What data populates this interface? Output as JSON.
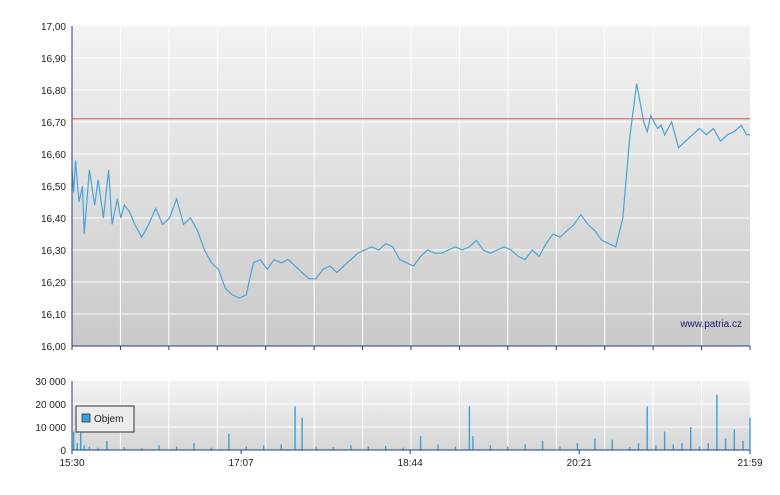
{
  "watermark": "www.patria.cz",
  "colors": {
    "price_line": "#4aa3d8",
    "reference_line": "#d9534f",
    "volume_bar": "#3a9fd6",
    "axis": "#1f3f7a",
    "grid": "#ffffff",
    "bg_top": "#f3f3f3",
    "bg_bottom": "#c9c9c9"
  },
  "chart_data": [
    {
      "type": "line",
      "title": "",
      "xlabel": "",
      "ylabel": "",
      "x_ticks": [
        "15:30",
        "17:07",
        "18:44",
        "20:21",
        "21:59"
      ],
      "y_ticks": [
        "16,00",
        "16,10",
        "16,20",
        "16,30",
        "16,40",
        "16,50",
        "16,60",
        "16,70",
        "16,80",
        "16,90",
        "17,00"
      ],
      "ylim": [
        16.0,
        17.0
      ],
      "xlim": [
        "15:30",
        "21:59"
      ],
      "grid": true,
      "reference_line": 16.71,
      "series": [
        {
          "x": [
            "15:30",
            "15:31",
            "15:32",
            "15:34",
            "15:36",
            "15:37",
            "15:40",
            "15:43",
            "15:45",
            "15:48",
            "15:51",
            "15:53",
            "15:56",
            "15:58",
            "16:00",
            "16:03",
            "16:06",
            "16:10",
            "16:14",
            "16:18",
            "16:22",
            "16:26",
            "16:30",
            "16:34",
            "16:38",
            "16:42",
            "16:46",
            "16:50",
            "16:54",
            "16:58",
            "17:02",
            "17:06",
            "17:10",
            "17:14",
            "17:18",
            "17:22",
            "17:26",
            "17:30",
            "17:34",
            "17:38",
            "17:42",
            "17:46",
            "17:50",
            "17:54",
            "17:58",
            "18:02",
            "18:06",
            "18:10",
            "18:14",
            "18:18",
            "18:22",
            "18:26",
            "18:30",
            "18:34",
            "18:38",
            "18:42",
            "18:46",
            "18:50",
            "18:54",
            "18:58",
            "19:02",
            "19:06",
            "19:10",
            "19:14",
            "19:18",
            "19:22",
            "19:26",
            "19:30",
            "19:34",
            "19:38",
            "19:42",
            "19:46",
            "19:50",
            "19:54",
            "19:58",
            "20:02",
            "20:06",
            "20:10",
            "20:14",
            "20:18",
            "20:22",
            "20:26",
            "20:30",
            "20:34",
            "20:38",
            "20:42",
            "20:46",
            "20:50",
            "20:54",
            "20:58",
            "21:00",
            "21:02",
            "21:04",
            "21:06",
            "21:08",
            "21:10",
            "21:14",
            "21:18",
            "21:22",
            "21:26",
            "21:30",
            "21:34",
            "21:38",
            "21:42",
            "21:46",
            "21:50",
            "21:54",
            "21:57",
            "21:59"
          ],
          "values": [
            16.55,
            16.48,
            16.58,
            16.45,
            16.5,
            16.35,
            16.55,
            16.44,
            16.52,
            16.4,
            16.55,
            16.38,
            16.46,
            16.4,
            16.44,
            16.42,
            16.38,
            16.34,
            16.38,
            16.43,
            16.38,
            16.4,
            16.46,
            16.38,
            16.4,
            16.36,
            16.3,
            16.26,
            16.24,
            16.18,
            16.16,
            16.15,
            16.16,
            16.26,
            16.27,
            16.24,
            16.27,
            16.26,
            16.27,
            16.25,
            16.23,
            16.21,
            16.21,
            16.24,
            16.25,
            16.23,
            16.25,
            16.27,
            16.29,
            16.3,
            16.31,
            16.3,
            16.32,
            16.31,
            16.27,
            16.26,
            16.25,
            16.28,
            16.3,
            16.29,
            16.29,
            16.3,
            16.31,
            16.3,
            16.31,
            16.33,
            16.3,
            16.29,
            16.3,
            16.31,
            16.3,
            16.28,
            16.27,
            16.3,
            16.28,
            16.32,
            16.35,
            16.34,
            16.36,
            16.38,
            16.41,
            16.38,
            16.36,
            16.33,
            16.32,
            16.31,
            16.4,
            16.65,
            16.82,
            16.7,
            16.67,
            16.72,
            16.7,
            16.68,
            16.69,
            16.66,
            16.7,
            16.62,
            16.64,
            16.66,
            16.68,
            16.66,
            16.68,
            16.64,
            16.66,
            16.67,
            16.69,
            16.66,
            16.66
          ]
        }
      ]
    },
    {
      "type": "bar",
      "title": "",
      "xlabel": "",
      "ylabel": "",
      "legend": [
        "Objem"
      ],
      "legend_position": "left",
      "y_ticks": [
        "0",
        "10 000",
        "20 000",
        "30 000"
      ],
      "ylim": [
        0,
        30000
      ],
      "x_ticks": [
        "15:30",
        "17:07",
        "18:44",
        "20:21",
        "21:59"
      ],
      "series": [
        {
          "name": "Objem",
          "x": [
            "15:31",
            "15:33",
            "15:35",
            "15:37",
            "15:40",
            "15:45",
            "15:50",
            "16:00",
            "16:10",
            "16:20",
            "16:30",
            "16:40",
            "16:50",
            "17:00",
            "17:10",
            "17:20",
            "17:30",
            "17:38",
            "17:42",
            "17:50",
            "18:00",
            "18:10",
            "18:20",
            "18:30",
            "18:40",
            "18:50",
            "19:00",
            "19:10",
            "19:18",
            "19:20",
            "19:30",
            "19:40",
            "19:50",
            "20:00",
            "20:10",
            "20:20",
            "20:30",
            "20:40",
            "20:50",
            "20:55",
            "21:00",
            "21:05",
            "21:10",
            "21:15",
            "21:20",
            "21:25",
            "21:30",
            "21:35",
            "21:40",
            "21:45",
            "21:50",
            "21:55",
            "21:59"
          ],
          "values": [
            8000,
            3000,
            13000,
            2000,
            1500,
            1000,
            4000,
            1200,
            800,
            2000,
            1500,
            3000,
            1000,
            7000,
            1500,
            2000,
            2500,
            19000,
            14000,
            1500,
            1200,
            2000,
            1500,
            1800,
            1000,
            6000,
            2500,
            1500,
            19000,
            6000,
            2000,
            1500,
            2500,
            4000,
            1500,
            3000,
            5000,
            4500,
            1200,
            3000,
            19000,
            2000,
            8000,
            2500,
            3000,
            10000,
            1500,
            3000,
            24000,
            5000,
            9000,
            4000,
            14000
          ]
        }
      ]
    }
  ]
}
